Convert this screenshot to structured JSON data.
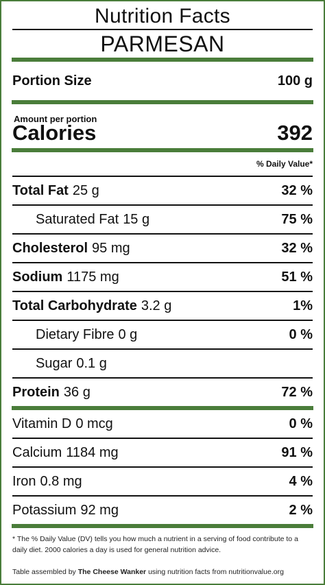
{
  "header": {
    "title": "Nutrition Facts",
    "product": "PARMESAN"
  },
  "portion": {
    "label": "Portion Size",
    "value": "100 g"
  },
  "calories": {
    "amount_label": "Amount per portion",
    "label": "Calories",
    "value": "392"
  },
  "dv_header": "% Daily Value*",
  "nutrients": [
    {
      "name": "Total Fat",
      "amount": "25 g",
      "dv": "32 %"
    },
    {
      "name": "Saturated Fat",
      "amount": "15 g",
      "dv": "75 %"
    },
    {
      "name": "Cholesterol",
      "amount": "95 mg",
      "dv": "32 %"
    },
    {
      "name": "Sodium",
      "amount": "1175 mg",
      "dv": "51 %"
    },
    {
      "name": "Total Carbohydrate",
      "amount": "3.2 g",
      "dv": "1%"
    },
    {
      "name": "Dietary Fibre",
      "amount": "0 g",
      "dv": "0 %"
    },
    {
      "name": "Sugar",
      "amount": "0.1 g",
      "dv": ""
    },
    {
      "name": "Protein",
      "amount": "36 g",
      "dv": "72 %"
    }
  ],
  "vitamins": [
    {
      "name": "Vitamin D",
      "amount": "0 mcg",
      "dv": "0 %"
    },
    {
      "name": "Calcium",
      "amount": "1184 mg",
      "dv": "91 %"
    },
    {
      "name": "Iron",
      "amount": "0.8 mg",
      "dv": "4 %"
    },
    {
      "name": "Potassium",
      "amount": "92 mg",
      "dv": "2 %"
    }
  ],
  "footnote": "* The % Daily Value (DV) tells you how much a nutrient in a serving of food contribute to a daily diet. 2000 calories a day is used for general nutrition advice.",
  "credit": {
    "prefix": "Table assembled by",
    "author": "The Cheese Wanker",
    "suffix": "using nutrition facts from nutritionvalue.org"
  },
  "colors": {
    "accent": "#4a7d3a",
    "text": "#111111"
  }
}
